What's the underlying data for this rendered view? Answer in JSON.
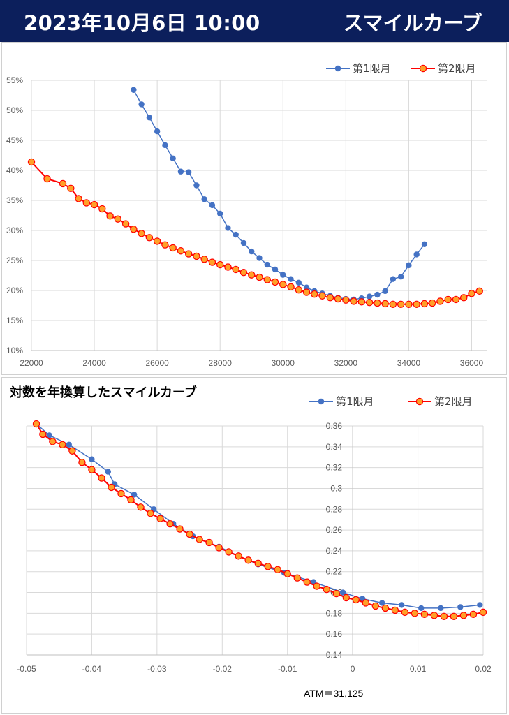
{
  "header": {
    "title": "2023年10月6日 10:00",
    "right_title": "スマイルカーブ",
    "background": "#0c1f5c"
  },
  "chart_data": [
    {
      "type": "line",
      "title": "",
      "xlim": [
        22000,
        36500
      ],
      "ylim": [
        10,
        55
      ],
      "x_ticks": [
        22000,
        24000,
        26000,
        28000,
        30000,
        32000,
        34000,
        36000
      ],
      "y_ticks": [
        "10%",
        "15%",
        "20%",
        "25%",
        "30%",
        "35%",
        "40%",
        "45%",
        "50%",
        "55%"
      ],
      "legend": "top-right",
      "series": [
        {
          "name": "第1限月",
          "color": "#4472c4",
          "x": [
            25250,
            25500,
            25750,
            26000,
            26250,
            26500,
            26750,
            27000,
            27250,
            27500,
            27750,
            28000,
            28250,
            28500,
            28750,
            29000,
            29250,
            29500,
            29750,
            30000,
            30250,
            30500,
            30750,
            31000,
            31250,
            31500,
            31750,
            32000,
            32250,
            32500,
            32750,
            33000,
            33250,
            33500,
            33750,
            34000,
            34250,
            34500
          ],
          "y": [
            53.4,
            51.0,
            48.8,
            46.5,
            44.2,
            42.0,
            39.8,
            39.7,
            37.5,
            35.2,
            34.2,
            32.8,
            30.4,
            29.3,
            27.9,
            26.5,
            25.4,
            24.3,
            23.5,
            22.6,
            21.9,
            21.3,
            20.5,
            19.9,
            19.5,
            19.1,
            18.8,
            18.6,
            18.5,
            18.7,
            19.0,
            19.3,
            19.9,
            21.9,
            22.3,
            24.2,
            26.0,
            27.7
          ]
        },
        {
          "name": "第2限月",
          "color": "#ff0000",
          "x": [
            22000,
            22500,
            23000,
            23250,
            23500,
            23750,
            24000,
            24250,
            24500,
            24750,
            25000,
            25250,
            25500,
            25750,
            26000,
            26250,
            26500,
            26750,
            27000,
            27250,
            27500,
            27750,
            28000,
            28250,
            28500,
            28750,
            29000,
            29250,
            29500,
            29750,
            30000,
            30250,
            30500,
            30750,
            31000,
            31250,
            31500,
            31750,
            32000,
            32250,
            32500,
            32750,
            33000,
            33250,
            33500,
            33750,
            34000,
            34250,
            34500,
            34750,
            35000,
            35250,
            35500,
            35750,
            36000,
            36250
          ],
          "y": [
            41.4,
            38.6,
            37.8,
            37.0,
            35.3,
            34.6,
            34.3,
            33.6,
            32.4,
            31.9,
            31.1,
            30.2,
            29.5,
            28.8,
            28.2,
            27.6,
            27.1,
            26.6,
            26.1,
            25.7,
            25.2,
            24.7,
            24.3,
            23.9,
            23.5,
            23.0,
            22.6,
            22.2,
            21.8,
            21.4,
            21.0,
            20.6,
            20.1,
            19.7,
            19.4,
            19.1,
            18.8,
            18.6,
            18.4,
            18.2,
            18.1,
            18.0,
            17.9,
            17.8,
            17.7,
            17.7,
            17.7,
            17.7,
            17.8,
            17.9,
            18.2,
            18.5,
            18.5,
            18.8,
            19.5,
            19.9
          ]
        }
      ]
    },
    {
      "type": "line",
      "title": "対数を年換算したスマイルカーブ",
      "xlim": [
        -0.05,
        0.02
      ],
      "ylim": [
        0.14,
        0.36
      ],
      "x_ticks": [
        "-0.05",
        "-0.04",
        "-0.03",
        "-0.02",
        "-0.01",
        "0",
        "0.01",
        "0.02"
      ],
      "y_ticks": [
        "0.14",
        "0.16",
        "0.18",
        "0.2",
        "0.22",
        "0.24",
        "0.26",
        "0.28",
        "0.3",
        "0.32",
        "0.34",
        "0.36"
      ],
      "legend": "top-right",
      "series": [
        {
          "name": "第1限月",
          "color": "#4472c4",
          "x": [
            -0.0485,
            -0.0465,
            -0.0435,
            -0.04,
            -0.0375,
            -0.0365,
            -0.0335,
            -0.0305,
            -0.0275,
            -0.0245,
            -0.0205,
            -0.0175,
            -0.0145,
            -0.0105,
            -0.006,
            -0.0015,
            0.0015,
            0.0045,
            0.0075,
            0.0105,
            0.0135,
            0.0165,
            0.0195
          ],
          "y": [
            0.362,
            0.351,
            0.342,
            0.328,
            0.316,
            0.304,
            0.294,
            0.28,
            0.266,
            0.254,
            0.244,
            0.235,
            0.227,
            0.219,
            0.21,
            0.2,
            0.194,
            0.19,
            0.188,
            0.185,
            0.185,
            0.186,
            0.188
          ]
        },
        {
          "name": "第2限月",
          "color": "#ff0000",
          "x": [
            -0.0485,
            -0.0475,
            -0.046,
            -0.0445,
            -0.043,
            -0.0415,
            -0.04,
            -0.0385,
            -0.037,
            -0.0355,
            -0.034,
            -0.0325,
            -0.031,
            -0.0295,
            -0.028,
            -0.0265,
            -0.025,
            -0.0235,
            -0.022,
            -0.0205,
            -0.019,
            -0.0175,
            -0.016,
            -0.0145,
            -0.013,
            -0.0115,
            -0.01,
            -0.0085,
            -0.007,
            -0.0055,
            -0.004,
            -0.0025,
            -0.001,
            0.0005,
            0.002,
            0.0035,
            0.005,
            0.0065,
            0.008,
            0.0095,
            0.011,
            0.0125,
            0.014,
            0.0155,
            0.017,
            0.0185,
            0.02
          ],
          "y": [
            0.362,
            0.352,
            0.345,
            0.342,
            0.336,
            0.325,
            0.318,
            0.31,
            0.301,
            0.295,
            0.289,
            0.282,
            0.276,
            0.271,
            0.266,
            0.261,
            0.256,
            0.251,
            0.248,
            0.243,
            0.239,
            0.235,
            0.231,
            0.228,
            0.225,
            0.222,
            0.218,
            0.214,
            0.21,
            0.206,
            0.203,
            0.199,
            0.195,
            0.193,
            0.19,
            0.187,
            0.185,
            0.183,
            0.181,
            0.18,
            0.179,
            0.178,
            0.177,
            0.177,
            0.178,
            0.179,
            0.181
          ]
        }
      ]
    }
  ],
  "atm_label": "ATM＝31,125"
}
